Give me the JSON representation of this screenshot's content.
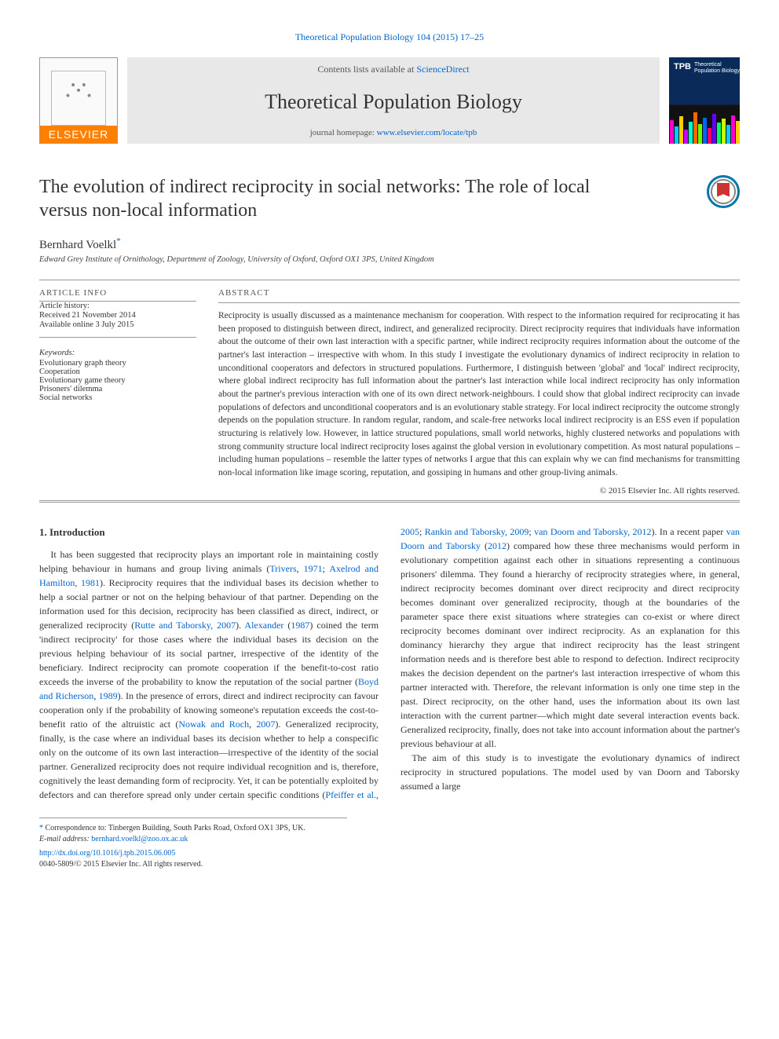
{
  "citation": {
    "journal": "Theoretical Population Biology",
    "vol": "104 (2015) 17–25"
  },
  "masthead": {
    "contents_prefix": "Contents lists available at ",
    "contents_link_text": "ScienceDirect",
    "journal_name": "Theoretical Population Biology",
    "homepage_prefix": "journal homepage: ",
    "homepage_link_text": "www.elsevier.com/locate/tpb",
    "elsevier_brand": "ELSEVIER",
    "cover": {
      "tpb": "TPB",
      "subtitle": "Theoretical\nPopulation\nBiology"
    }
  },
  "article": {
    "title": "The evolution of indirect reciprocity in social networks: The role of local versus non-local information",
    "author_name": "Bernhard Voelkl",
    "author_mark": "*",
    "affiliation": "Edward Grey Institute of Ornithology, Department of Zoology, University of Oxford, Oxford OX1 3PS, United Kingdom"
  },
  "meta": {
    "info_label": "article info",
    "history": [
      "Article history:",
      "Received 21 November 2014",
      "Available online 3 July 2015"
    ],
    "keywords_label": "Keywords:",
    "keywords": [
      "Evolutionary graph theory",
      "Cooperation",
      "Evolutionary game theory",
      "Prisoners' dilemma",
      "Social networks"
    ]
  },
  "abstract": {
    "label": "abstract",
    "text": "Reciprocity is usually discussed as a maintenance mechanism for cooperation. With respect to the information required for reciprocating it has been proposed to distinguish between direct, indirect, and generalized reciprocity. Direct reciprocity requires that individuals have information about the outcome of their own last interaction with a specific partner, while indirect reciprocity requires information about the outcome of the partner's last interaction – irrespective with whom. In this study I investigate the evolutionary dynamics of indirect reciprocity in relation to unconditional cooperators and defectors in structured populations. Furthermore, I distinguish between 'global' and 'local' indirect reciprocity, where global indirect reciprocity has full information about the partner's last interaction while local indirect reciprocity has only information about the partner's previous interaction with one of its own direct network-neighbours. I could show that global indirect reciprocity can invade populations of defectors and unconditional cooperators and is an evolutionary stable strategy. For local indirect reciprocity the outcome strongly depends on the population structure. In random regular, random, and scale-free networks local indirect reciprocity is an ESS even if population structuring is relatively low. However, in lattice structured populations, small world networks, highly clustered networks and populations with strong community structure local indirect reciprocity loses against the global version in evolutionary competition. As most natural populations – including human populations – resemble the latter types of networks I argue that this can explain why we can find mechanisms for transmitting non-local information like image scoring, reputation, and gossiping in humans and other group-living animals.",
    "copyright": "© 2015 Elsevier Inc. All rights reserved."
  },
  "section": {
    "heading": "1. Introduction",
    "para1": {
      "t1": "It has been suggested that reciprocity plays an important role in maintaining costly helping behaviour in humans and group living animals (",
      "c1": "Trivers",
      "y1": ", ",
      "c1b": "1971",
      "sep1": "; ",
      "c2": "Axelrod and Hamilton, 1981",
      "t2": "). Reciprocity requires that the individual bases its decision whether to help a social partner or not on the helping behaviour of that partner. Depending on the information used for this decision, reciprocity has been classified as direct, indirect, or generalized reciprocity (",
      "c3": "Rutte and Taborsky, 2007",
      "t3": "). ",
      "c4": "Alexander",
      "y4": " (",
      "c4b": "1987",
      "y4b": ")",
      "t4": " coined the term 'indirect reciprocity' for those cases where the individual bases its decision on the previous helping behaviour of its social partner, irrespective of the identity of the beneficiary. Indirect reciprocity can promote cooperation if the benefit-to-cost ratio exceeds the inverse of the probability to know the reputation of the social partner (",
      "c5": "Boyd and Richerson",
      "y5": ", ",
      "c5b": "1989",
      "t5": "). In the presence of errors, direct and indirect reciprocity can favour cooperation only if the probability of knowing someone's reputation exceeds the cost-to-benefit ratio of the altruistic act (",
      "c6": "Nowak and Roch",
      "y6": ", ",
      "c6b": "2007",
      "t6": "). Generalized reciprocity, finally, is the case where an individual bases its decision whether to help a conspecific only on the outcome of its own last interaction—irrespective of the identity of the social partner. Generalized reciprocity does not require individual recognition and is, therefore, cognitively the least demanding form of reciprocity. Yet, it can be potentially exploited by defectors and can therefore spread only under certain specific conditions"
    },
    "para2": {
      "t1": "(",
      "c1": "Pfeiffer et al., 2005",
      "sep1": "; ",
      "c2": "Rankin and Taborsky, 2009",
      "sep2": "; ",
      "c3": "van Doorn and Taborsky, 2012",
      "t2": "). In a recent paper ",
      "c4": "van Doorn and Taborsky",
      "y4": " (",
      "c4b": "2012",
      "y4b": ")",
      "t3": " compared how these three mechanisms would perform in evolutionary competition against each other in situations representing a continuous prisoners' dilemma. They found a hierarchy of reciprocity strategies where, in general, indirect reciprocity becomes dominant over direct reciprocity and direct reciprocity becomes dominant over generalized reciprocity, though at the boundaries of the parameter space there exist situations where strategies can co-exist or where direct reciprocity becomes dominant over indirect reciprocity. As an explanation for this dominancy hierarchy they argue that indirect reciprocity has the least stringent information needs and is therefore best able to respond to defection. Indirect reciprocity makes the decision dependent on the partner's last interaction irrespective of whom this partner interacted with. Therefore, the relevant information is only one time step in the past. Direct reciprocity, on the other hand, uses the information about its own last interaction with the current partner—which might date several interaction events back. Generalized reciprocity, finally, does not take into account information about the partner's previous behaviour at all."
    },
    "para3": "The aim of this study is to investigate the evolutionary dynamics of indirect reciprocity in structured populations. The model used by van Doorn and Taborsky assumed a large"
  },
  "footnotes": {
    "corr_label": "Correspondence to: Tinbergen Building, South Parks Road, Oxford OX1 3PS, UK.",
    "email_label": "E-mail address: ",
    "email": "bernhard.voelkl@zoo.ox.ac.uk",
    "doi_link": "http://dx.doi.org/10.1016/j.tpb.2015.06.005",
    "issn": "0040-5809/© 2015 Elsevier Inc. All rights reserved."
  },
  "cover_bars": {
    "heights": [
      30,
      22,
      35,
      18,
      28,
      40,
      25,
      33,
      20,
      38,
      27,
      32,
      24,
      36,
      29
    ],
    "colors": [
      "#f0c",
      "#0cf",
      "#fc0",
      "#c0f",
      "#0fc",
      "#f60",
      "#6f0",
      "#06f",
      "#f06",
      "#60f",
      "#0f6",
      "#cf0",
      "#0cf",
      "#f0c",
      "#fc0"
    ]
  }
}
